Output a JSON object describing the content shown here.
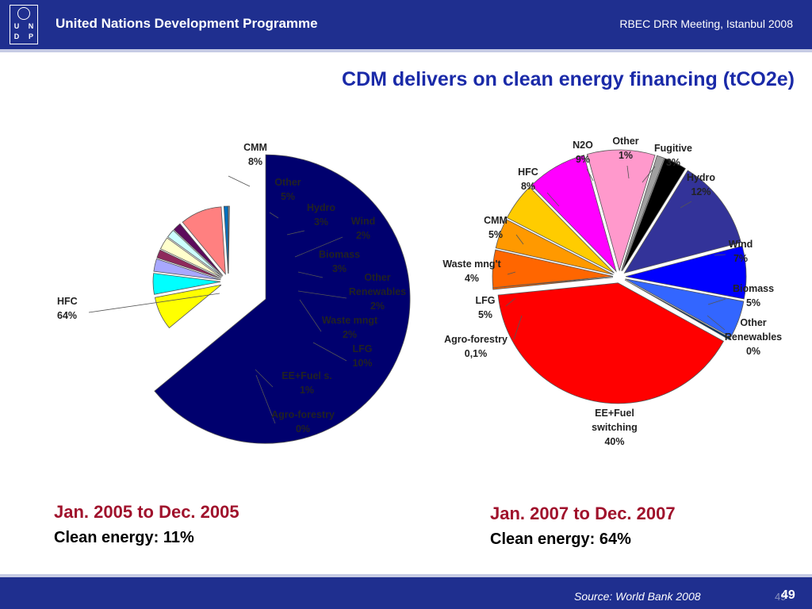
{
  "header": {
    "org_name": "United Nations Development Programme",
    "meeting": "RBEC DRR Meeting, Istanbul 2008",
    "logo_letters": [
      "U",
      "N",
      "D",
      "P"
    ]
  },
  "title": "CDM delivers on clean energy financing (tCO2e)",
  "colors": {
    "header_bg": "#1f2f8f",
    "title": "#1a2aa8",
    "period": "#a0122c"
  },
  "chart_data": [
    {
      "type": "pie",
      "period": "Jan. 2005 to Dec. 2005",
      "clean_energy": "Clean energy: 11%",
      "slices": [
        {
          "label": "HFC",
          "value": 64,
          "text": "64%",
          "color": "#00006e"
        },
        {
          "label": "CMM",
          "value": 8,
          "text": "8%",
          "color": "#ffff00"
        },
        {
          "label": "Other",
          "value": 5,
          "text": "5%",
          "color": "#00ffff"
        },
        {
          "label": "Hydro",
          "value": 3,
          "text": "3%",
          "color": "#a8a8ff"
        },
        {
          "label": "Wind",
          "value": 2,
          "text": "2%",
          "color": "#8e2a5c"
        },
        {
          "label": "Biomass",
          "value": 3,
          "text": "3%",
          "color": "#ffffcc"
        },
        {
          "label": "Other Renewables",
          "value": 2,
          "text": "2%",
          "color": "#ccffff"
        },
        {
          "label": "Waste mngt",
          "value": 2,
          "text": "2%",
          "color": "#5c0a5c"
        },
        {
          "label": "LFG",
          "value": 10,
          "text": "10%",
          "color": "#ff8080"
        },
        {
          "label": "EE+Fuel s.",
          "value": 1,
          "text": "1%",
          "color": "#0070c0"
        },
        {
          "label": "Agro-forestry",
          "value": 0,
          "text": "0%",
          "color": "#c0c0c0"
        }
      ]
    },
    {
      "type": "pie",
      "period": "Jan. 2007 to Dec. 2007",
      "clean_energy": "Clean energy: 64%",
      "slices": [
        {
          "label": "N2O",
          "value": 9,
          "text": "9%",
          "color": "#ff99cc"
        },
        {
          "label": "Other",
          "value": 1,
          "text": "1%",
          "color": "#a0a0a0"
        },
        {
          "label": "Fugitive",
          "value": 3,
          "text": "3%",
          "color": "#000000"
        },
        {
          "label": "Hydro",
          "value": 12,
          "text": "12%",
          "color": "#333399"
        },
        {
          "label": "Wind",
          "value": 7,
          "text": "7%",
          "color": "#0000ff"
        },
        {
          "label": "Biomass",
          "value": 5,
          "text": "5%",
          "color": "#3366ff"
        },
        {
          "label": "Other Renewables",
          "value": 0,
          "text": "0%",
          "color": "#003366"
        },
        {
          "label": "EE+Fuel switching",
          "value": 40,
          "text": "40%",
          "color": "#ff0000"
        },
        {
          "label": "Agro-forestry",
          "value": 0.1,
          "text": "0,1%",
          "color": "#ff6600"
        },
        {
          "label": "LFG",
          "value": 5,
          "text": "5%",
          "color": "#ff6600"
        },
        {
          "label": "Waste mng't",
          "value": 4,
          "text": "4%",
          "color": "#ff9900"
        },
        {
          "label": "CMM",
          "value": 5,
          "text": "5%",
          "color": "#ffcc00"
        },
        {
          "label": "HFC",
          "value": 8,
          "text": "8%",
          "color": "#ff00ff"
        }
      ]
    }
  ],
  "footer": {
    "source": "Source: World Bank 2008",
    "page_shadow": "49",
    "page": "49"
  }
}
